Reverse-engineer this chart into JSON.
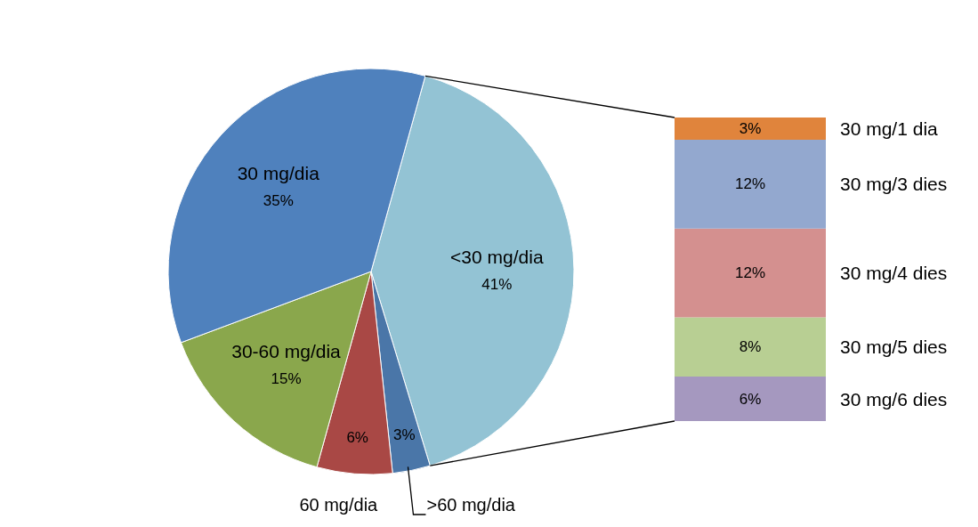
{
  "chart_data": [
    {
      "type": "pie",
      "categories": [
        "<30 mg/dia",
        ">60 mg/dia",
        "60 mg/dia",
        "30-60 mg/dia",
        "30 mg/dia"
      ],
      "values": [
        41,
        3,
        6,
        15,
        35
      ],
      "value_labels": [
        "41%",
        "3%",
        "6%",
        "15%",
        "35%"
      ],
      "colors": [
        "#93c3d4",
        "#4a76a8",
        "#a94845",
        "#8aa74c",
        "#4f81bd"
      ]
    },
    {
      "type": "bar",
      "stacked": true,
      "categories": [
        null
      ],
      "series": [
        {
          "name": "30 mg/6 dies",
          "color": "#a598bf",
          "values": [
            6
          ],
          "value_labels": [
            "6%"
          ]
        },
        {
          "name": "30 mg/5 dies",
          "color": "#b8cf93",
          "values": [
            8
          ],
          "value_labels": [
            "8%"
          ]
        },
        {
          "name": "30 mg/4 dies",
          "color": "#d4908f",
          "values": [
            12
          ],
          "value_labels": [
            "12%"
          ]
        },
        {
          "name": "30 mg/3 dies",
          "color": "#93a8cf",
          "values": [
            12
          ],
          "value_labels": [
            "12%"
          ]
        },
        {
          "name": "30 mg/1 dia",
          "color": "#e0843c",
          "values": [
            3
          ],
          "value_labels": [
            "3%"
          ]
        }
      ]
    }
  ]
}
